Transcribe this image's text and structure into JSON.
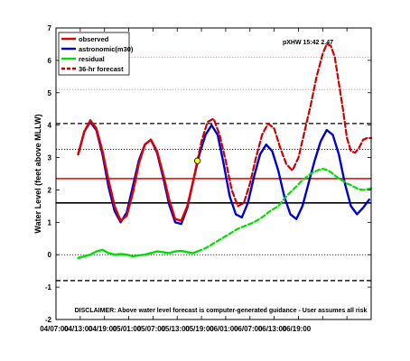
{
  "chart_data": {
    "type": "line",
    "title": "",
    "xlabel": "",
    "ylabel": "Water Level (feet above MLLW)",
    "xlim": [
      0,
      78
    ],
    "ylim": [
      -2,
      7
    ],
    "x_tick_values": [
      0,
      6,
      12,
      18,
      24,
      30,
      36,
      42,
      48,
      54,
      60,
      66,
      72
    ],
    "x_ticks": [
      "04/07:00",
      "04/13:00",
      "04/19:00",
      "05/01:00",
      "05/07:00",
      "05/13:00",
      "05/19:00",
      "06/01:00",
      "06/07:00",
      "06/13:00",
      "06/19:00",
      "",
      ""
    ],
    "y_ticks": [
      -2,
      -1,
      0,
      1,
      2,
      3,
      4,
      5,
      6,
      7
    ],
    "annotation": "pXHW 15:42 2.47",
    "disclaimer": "DISCLAIMER: Above water level forecast is computer-generated guidance - User assumes all risk",
    "legend": [
      "observed",
      "astronomic(m30)",
      "residual",
      "36-hr forecast"
    ],
    "reference_lines": [
      {
        "y": 4.05,
        "color": "#000000",
        "style": "dashed"
      },
      {
        "y": 3.25,
        "color": "#000000",
        "style": "dotted"
      },
      {
        "y": 2.35,
        "color": "#e00000",
        "style": "solid"
      },
      {
        "y": 1.6,
        "color": "#000000",
        "style": "solid"
      },
      {
        "y": 0.0,
        "color": "#000000",
        "style": "dotted"
      },
      {
        "y": -0.8,
        "color": "#000000",
        "style": "dashed"
      },
      {
        "y": 5.1,
        "color": "#e08080",
        "style": "dotted"
      },
      {
        "y": 6.1,
        "color": "#e08080",
        "style": "dotted"
      }
    ],
    "series": [
      {
        "name": "observed",
        "color": "#e00000",
        "x": [
          5.5,
          7,
          8.5,
          10,
          11.5,
          13,
          14.5,
          16,
          17.5,
          19,
          20.5,
          22,
          23.5,
          25,
          26.5,
          28,
          29.5,
          31,
          32.5,
          34,
          35
        ],
        "y": [
          3.1,
          3.8,
          4.15,
          3.9,
          3.2,
          2.3,
          1.5,
          1.05,
          1.2,
          1.9,
          2.8,
          3.4,
          3.55,
          3.2,
          2.5,
          1.7,
          1.1,
          1.05,
          1.5,
          2.3,
          2.9
        ]
      },
      {
        "name": "astronomic(m30)",
        "color": "#0000cc",
        "x": [
          5.5,
          7,
          8.5,
          10,
          11.5,
          13,
          14.5,
          16,
          17.5,
          19,
          20.5,
          22,
          23.5,
          25,
          26.5,
          28,
          29.5,
          31,
          32.5,
          34,
          35.5,
          37,
          38.5,
          40,
          41.5,
          43,
          44.5,
          46,
          47.5,
          49,
          50.5,
          52,
          53.5,
          55,
          56.5,
          58,
          59.5,
          61,
          62.5,
          64,
          65.5,
          67,
          68.5,
          70,
          71.5,
          73,
          74.5,
          76,
          77.5
        ],
        "y": [
          3.1,
          3.8,
          4.1,
          3.85,
          3.1,
          2.1,
          1.35,
          1.0,
          1.3,
          2.1,
          2.9,
          3.4,
          3.55,
          3.15,
          2.4,
          1.55,
          1.0,
          0.95,
          1.45,
          2.3,
          3.1,
          3.7,
          4.0,
          3.7,
          2.8,
          1.8,
          1.25,
          1.15,
          1.6,
          2.4,
          3.1,
          3.4,
          3.2,
          2.6,
          1.8,
          1.25,
          1.1,
          1.5,
          2.2,
          2.9,
          3.5,
          3.85,
          3.7,
          3.1,
          2.2,
          1.5,
          1.25,
          1.45,
          1.7
        ]
      },
      {
        "name": "residual",
        "color": "#00dd00",
        "x": [
          5.5,
          7,
          8.5,
          10,
          11.5,
          13,
          14.5,
          16,
          17.5,
          19,
          20.5,
          22,
          23.5,
          25,
          26.5,
          28,
          29.5,
          31,
          32.5,
          34,
          35
        ],
        "y": [
          -0.1,
          -0.05,
          0.0,
          0.1,
          0.15,
          0.05,
          0.0,
          0.02,
          0.0,
          -0.05,
          -0.02,
          0.0,
          0.05,
          0.1,
          0.08,
          0.05,
          0.1,
          0.12,
          0.08,
          0.05,
          0.1
        ]
      },
      {
        "name": "residual-forecast",
        "color": "#00dd00",
        "x": [
          35,
          37,
          39,
          41,
          43,
          45,
          47,
          49,
          51,
          53,
          55,
          57,
          59,
          61,
          63,
          65,
          66,
          67,
          68,
          69,
          70,
          71,
          72,
          73,
          74,
          75,
          76,
          77,
          78
        ],
        "y": [
          0.1,
          0.2,
          0.35,
          0.5,
          0.65,
          0.8,
          0.9,
          1.0,
          1.15,
          1.35,
          1.5,
          1.8,
          2.05,
          2.3,
          2.5,
          2.62,
          2.65,
          2.62,
          2.55,
          2.45,
          2.35,
          2.28,
          2.2,
          2.15,
          2.08,
          2.02,
          2.0,
          2.02,
          2.05
        ]
      },
      {
        "name": "36-hr forecast",
        "color": "#cc0000",
        "x": [
          35,
          36,
          37.5,
          39,
          40.5,
          42,
          43.5,
          45,
          46.5,
          48,
          49.5,
          51,
          52.5,
          54,
          55.5,
          57,
          58.5,
          60,
          61.5,
          63,
          64.5,
          66,
          67,
          68,
          69,
          70,
          71,
          72,
          73,
          74,
          75,
          76,
          77,
          78
        ],
        "y": [
          2.9,
          3.5,
          4.1,
          4.2,
          3.7,
          2.9,
          2.0,
          1.5,
          1.6,
          2.2,
          3.0,
          3.7,
          4.05,
          3.9,
          3.3,
          2.8,
          2.6,
          3.0,
          3.8,
          4.6,
          5.5,
          6.2,
          6.5,
          6.45,
          6.1,
          5.3,
          4.5,
          3.6,
          3.2,
          3.15,
          3.3,
          3.55,
          3.6,
          3.6
        ]
      }
    ],
    "markers": [
      {
        "x": 35,
        "y": 2.9,
        "color": "#ffff00"
      }
    ]
  }
}
